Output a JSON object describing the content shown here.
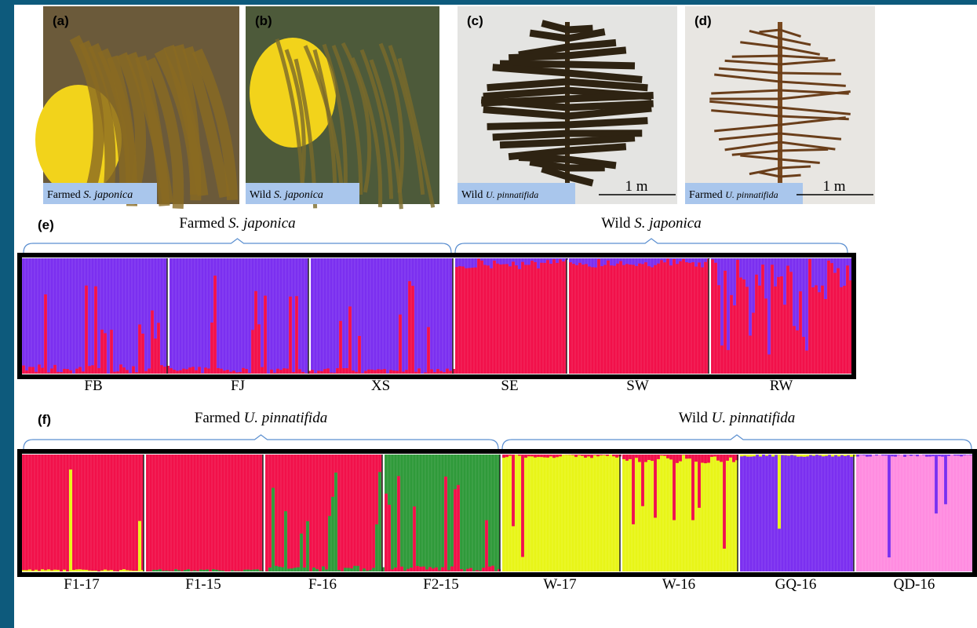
{
  "panels": [
    {
      "label": "(a)",
      "caption_prefix": "Farmed",
      "caption_species": "S. japonica"
    },
    {
      "label": "(b)",
      "caption_prefix": "Wild",
      "caption_species": "S. japonica"
    },
    {
      "label": "(c)",
      "caption_prefix": "Wild",
      "caption_species": "U. pinnatifida",
      "scale": "1 m"
    },
    {
      "label": "(d)",
      "caption_prefix": "Farmed",
      "caption_species": "U. pinnatifida",
      "scale": "1 m"
    }
  ],
  "structure_plots": [
    {
      "label": "(e)",
      "groups": [
        {
          "prefix": "Farmed",
          "species": "S. japonica"
        },
        {
          "prefix": "Wild",
          "species": "S. japonica"
        }
      ],
      "populations": [
        "FB",
        "FJ",
        "XS",
        "SE",
        "SW",
        "RW"
      ]
    },
    {
      "label": "(f)",
      "groups": [
        {
          "prefix": "Farmed",
          "species": "U. pinnatifida"
        },
        {
          "prefix": "Wild",
          "species": "U. pinnatifida"
        }
      ],
      "populations": [
        "F1-17",
        "F1-15",
        "F-16",
        "F2-15",
        "W-17",
        "W-16",
        "GQ-16",
        "QD-16"
      ]
    }
  ]
}
